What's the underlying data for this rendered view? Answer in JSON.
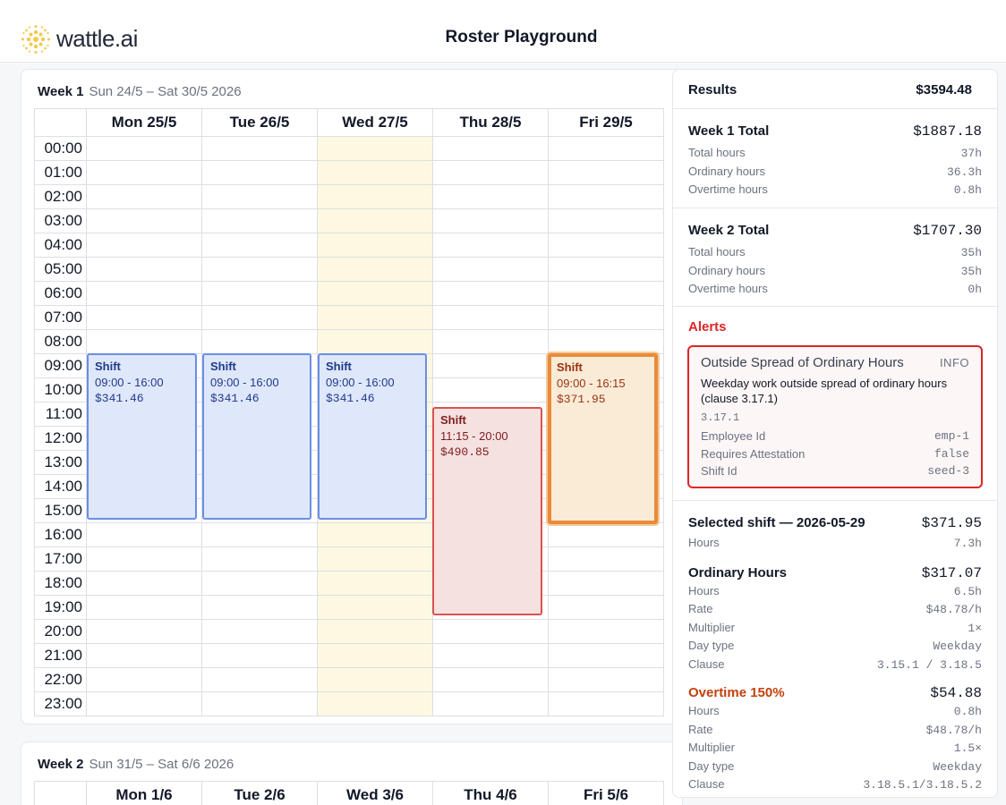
{
  "header": {
    "logo_text": "wattle.ai",
    "title": "Roster Playground"
  },
  "week1": {
    "label": "Week 1",
    "range": "Sun 24/5 – Sat 30/5 2026",
    "days": [
      "Mon 25/5",
      "Tue 26/5",
      "Wed 27/5",
      "Thu 28/5",
      "Fri 29/5"
    ],
    "hours": [
      "00:00",
      "01:00",
      "02:00",
      "03:00",
      "04:00",
      "05:00",
      "06:00",
      "07:00",
      "08:00",
      "09:00",
      "10:00",
      "11:00",
      "12:00",
      "13:00",
      "14:00",
      "15:00",
      "16:00",
      "17:00",
      "18:00",
      "19:00",
      "20:00",
      "21:00",
      "22:00",
      "23:00"
    ],
    "shifts": [
      {
        "title": "Shift",
        "time": "09:00 - 16:00",
        "cost": "$341.46"
      },
      {
        "title": "Shift",
        "time": "09:00 - 16:00",
        "cost": "$341.46"
      },
      {
        "title": "Shift",
        "time": "09:00 - 16:00",
        "cost": "$341.46"
      },
      {
        "title": "Shift",
        "time": "11:15 - 20:00",
        "cost": "$490.85"
      },
      {
        "title": "Shift",
        "time": "09:00 - 16:15",
        "cost": "$371.95"
      }
    ]
  },
  "week2": {
    "label": "Week 2",
    "range": "Sun 31/5 – Sat 6/6 2026",
    "days": [
      "Mon 1/6",
      "Tue 2/6",
      "Wed 3/6",
      "Thu 4/6",
      "Fri 5/6"
    ]
  },
  "results": {
    "label": "Results",
    "total": "$3594.48",
    "week1": {
      "label": "Week 1 Total",
      "total": "$1887.18",
      "rows": [
        [
          "Total hours",
          "37h"
        ],
        [
          "Ordinary hours",
          "36.3h"
        ],
        [
          "Overtime hours",
          "0.8h"
        ]
      ]
    },
    "week2": {
      "label": "Week 2 Total",
      "total": "$1707.30",
      "rows": [
        [
          "Total hours",
          "35h"
        ],
        [
          "Ordinary hours",
          "35h"
        ],
        [
          "Overtime hours",
          "0h"
        ]
      ]
    }
  },
  "alerts": {
    "title": "Alerts",
    "item": {
      "name": "Outside Spread of Ordinary Hours",
      "severity": "INFO",
      "description": "Weekday work outside spread of ordinary hours (clause 3.17.1)",
      "clause": "3.17.1",
      "fields": [
        [
          "Employee Id",
          "emp-1"
        ],
        [
          "Requires Attestation",
          "false"
        ],
        [
          "Shift Id",
          "seed-3"
        ]
      ]
    }
  },
  "selected": {
    "label": "Selected shift — 2026-05-29",
    "total": "$371.95",
    "hours_label": "Hours",
    "hours": "7.3h",
    "ordinary": {
      "label": "Ordinary Hours",
      "total": "$317.07",
      "rows": [
        [
          "Hours",
          "6.5h"
        ],
        [
          "Rate",
          "$48.78/h"
        ],
        [
          "Multiplier",
          "1×"
        ],
        [
          "Day type",
          "Weekday"
        ],
        [
          "Clause",
          "3.15.1 / 3.18.5"
        ]
      ]
    },
    "overtime": {
      "label": "Overtime 150%",
      "total": "$54.88",
      "rows": [
        [
          "Hours",
          "0.8h"
        ],
        [
          "Rate",
          "$48.78/h"
        ],
        [
          "Multiplier",
          "1.5×"
        ],
        [
          "Day type",
          "Weekday"
        ],
        [
          "Clause",
          "3.18.5.1/3.18.5.2"
        ]
      ]
    }
  }
}
